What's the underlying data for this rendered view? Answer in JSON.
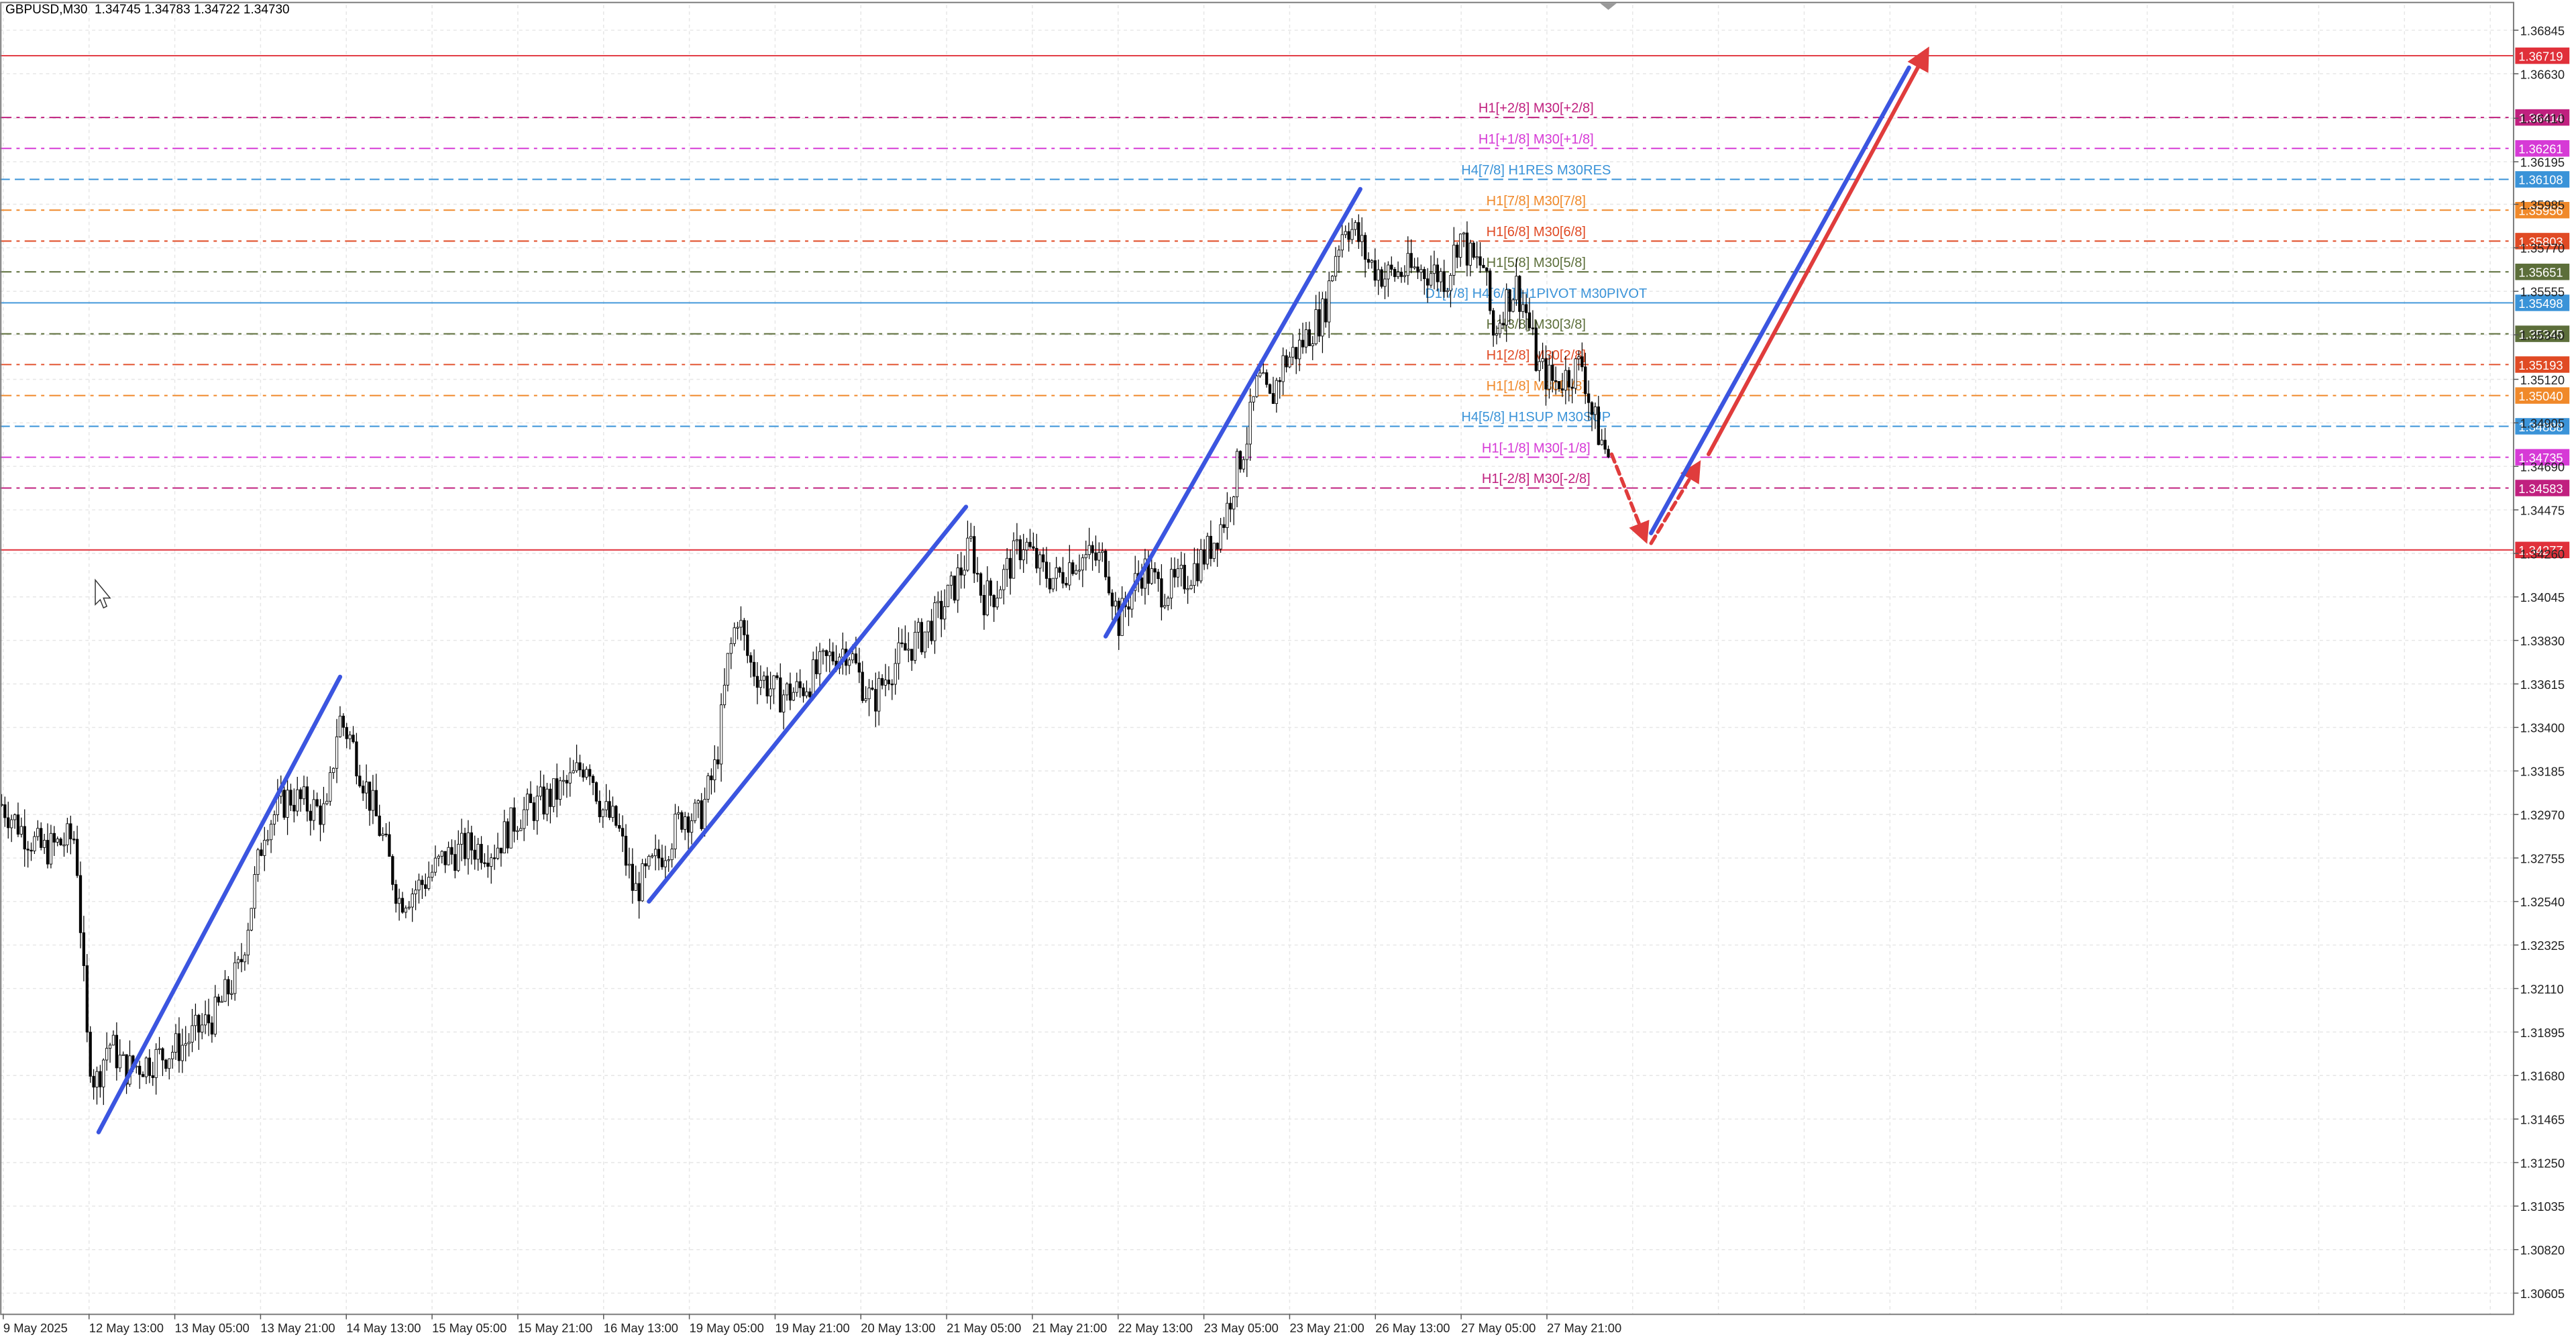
{
  "header": {
    "symbol": "GBPUSD,M30",
    "quote": "1.34745 1.34783 1.34722 1.34730"
  },
  "colors": {
    "candle": "#000000",
    "grid": "#e6e6e6",
    "channel": "#3b55e0",
    "forecast": "#e03c3c"
  },
  "chart_data": {
    "type": "candlestick",
    "y_ticks": [
      1.36845,
      1.3663,
      1.3641,
      1.36195,
      1.35985,
      1.3577,
      1.35555,
      1.3534,
      1.3512,
      1.34905,
      1.3469,
      1.34475,
      1.3426,
      1.34045,
      1.3383,
      1.33615,
      1.334,
      1.33185,
      1.3297,
      1.32755,
      1.3254,
      1.32325,
      1.3211,
      1.31895,
      1.3168,
      1.31465,
      1.3125,
      1.31035,
      1.3082,
      1.30605
    ],
    "x_ticks": [
      "9 May 2025",
      "12 May 13:00",
      "13 May 05:00",
      "13 May 21:00",
      "14 May 13:00",
      "15 May 05:00",
      "15 May 21:00",
      "16 May 13:00",
      "19 May 05:00",
      "19 May 21:00",
      "20 May 13:00",
      "21 May 05:00",
      "21 May 21:00",
      "22 May 13:00",
      "23 May 05:00",
      "23 May 21:00",
      "26 May 13:00",
      "27 May 05:00",
      "27 May 21:00"
    ],
    "levels": [
      {
        "label": "",
        "tag": "1.36719",
        "value": 1.36719,
        "color": "#e0303a",
        "style": "solid"
      },
      {
        "label": "H1[+2/8] M30[+2/8]",
        "tag": "1.36414",
        "value": 1.36414,
        "color": "#c0207f",
        "style": "dashdot"
      },
      {
        "label": "H1[+1/8] M30[+1/8]",
        "tag": "1.36261",
        "value": 1.36261,
        "color": "#d63ad6",
        "style": "dashdot"
      },
      {
        "label": "H4[7/8] H1RES M30RES",
        "tag": "1.36108",
        "value": 1.36108,
        "color": "#3a93d8",
        "style": "dashed"
      },
      {
        "label": "H1[7/8] M30[7/8]",
        "tag": "1.35956",
        "value": 1.35956,
        "color": "#f0892a",
        "style": "dashdot"
      },
      {
        "label": "H1[6/8] M30[6/8]",
        "tag": "1.35803",
        "value": 1.35803,
        "color": "#e04a24",
        "style": "dashdot"
      },
      {
        "label": "H1[5/8] M30[5/8]",
        "tag": "1.35651",
        "value": 1.35651,
        "color": "#5c6e3a",
        "style": "dashdot"
      },
      {
        "label": "D1[7/8] H4[6/8] H1PIVOT M30PIVOT",
        "tag": "1.35498",
        "value": 1.35498,
        "color": "#3a93d8",
        "style": "solid"
      },
      {
        "label": "H1[3/8] M30[3/8]",
        "tag": "1.35345",
        "value": 1.35345,
        "color": "#5c6e3a",
        "style": "dashdot"
      },
      {
        "label": "H1[2/8] M30[2/8]",
        "tag": "1.35193",
        "value": 1.35193,
        "color": "#e04a24",
        "style": "dashdot"
      },
      {
        "label": "H1[1/8] M30[1/8]",
        "tag": "1.35040",
        "value": 1.3504,
        "color": "#f0892a",
        "style": "dashdot"
      },
      {
        "label": "H4[5/8] H1SUP M30SUP",
        "tag": "1.34888",
        "value": 1.34888,
        "color": "#3a93d8",
        "style": "dashed"
      },
      {
        "label": "H1[-1/8] M30[-1/8]",
        "tag": "1.34735",
        "value": 1.34735,
        "color": "#d63ad6",
        "style": "dashdot"
      },
      {
        "label": "H1[-2/8] M30[-2/8]",
        "tag": "1.34583",
        "value": 1.34583,
        "color": "#c0207f",
        "style": "dashdot"
      },
      {
        "label": "",
        "tag": "1.34277",
        "value": 1.34277,
        "color": "#e0303a",
        "style": "solid"
      }
    ],
    "y_range": [
      1.305,
      1.3697
    ],
    "grid": true,
    "series": [
      {
        "points": [
          {
            "x": 0,
            "y": 1.3302
          },
          {
            "x": 15,
            "y": 1.3287
          },
          {
            "x": 25,
            "y": 1.3279
          },
          {
            "x": 45,
            "y": 1.3286
          },
          {
            "x": 52,
            "y": 1.3185
          },
          {
            "x": 57,
            "y": 1.3163
          },
          {
            "x": 65,
            "y": 1.3185
          },
          {
            "x": 75,
            "y": 1.3171
          },
          {
            "x": 90,
            "y": 1.3175
          },
          {
            "x": 110,
            "y": 1.3183
          },
          {
            "x": 130,
            "y": 1.3198
          },
          {
            "x": 145,
            "y": 1.3221
          },
          {
            "x": 160,
            "y": 1.3291
          },
          {
            "x": 175,
            "y": 1.3306
          },
          {
            "x": 190,
            "y": 1.33
          },
          {
            "x": 198,
            "y": 1.3297
          },
          {
            "x": 205,
            "y": 1.3345
          },
          {
            "x": 212,
            "y": 1.3335
          },
          {
            "x": 222,
            "y": 1.331
          },
          {
            "x": 232,
            "y": 1.3285
          },
          {
            "x": 242,
            "y": 1.3255
          },
          {
            "x": 255,
            "y": 1.3262
          },
          {
            "x": 270,
            "y": 1.3276
          },
          {
            "x": 285,
            "y": 1.3281
          },
          {
            "x": 300,
            "y": 1.328
          },
          {
            "x": 315,
            "y": 1.3297
          },
          {
            "x": 330,
            "y": 1.3303
          },
          {
            "x": 345,
            "y": 1.3312
          },
          {
            "x": 357,
            "y": 1.3325
          },
          {
            "x": 365,
            "y": 1.33
          },
          {
            "x": 375,
            "y": 1.3291
          },
          {
            "x": 385,
            "y": 1.3258
          },
          {
            "x": 395,
            "y": 1.327
          },
          {
            "x": 405,
            "y": 1.3282
          },
          {
            "x": 415,
            "y": 1.3298
          },
          {
            "x": 425,
            "y": 1.3295
          },
          {
            "x": 435,
            "y": 1.3322
          },
          {
            "x": 442,
            "y": 1.3372
          },
          {
            "x": 448,
            "y": 1.3396
          },
          {
            "x": 455,
            "y": 1.3372
          },
          {
            "x": 462,
            "y": 1.3365
          },
          {
            "x": 472,
            "y": 1.3356
          },
          {
            "x": 485,
            "y": 1.3358
          },
          {
            "x": 495,
            "y": 1.3366
          },
          {
            "x": 505,
            "y": 1.3375
          },
          {
            "x": 515,
            "y": 1.338
          },
          {
            "x": 522,
            "y": 1.3365
          },
          {
            "x": 530,
            "y": 1.3352
          },
          {
            "x": 540,
            "y": 1.3368
          },
          {
            "x": 550,
            "y": 1.3378
          },
          {
            "x": 560,
            "y": 1.3385
          },
          {
            "x": 570,
            "y": 1.3395
          },
          {
            "x": 580,
            "y": 1.341
          },
          {
            "x": 590,
            "y": 1.343
          },
          {
            "x": 597,
            "y": 1.3404
          },
          {
            "x": 605,
            "y": 1.3407
          },
          {
            "x": 612,
            "y": 1.3418
          },
          {
            "x": 622,
            "y": 1.3432
          },
          {
            "x": 632,
            "y": 1.3418
          },
          {
            "x": 642,
            "y": 1.3413
          },
          {
            "x": 652,
            "y": 1.3423
          },
          {
            "x": 662,
            "y": 1.3424
          },
          {
            "x": 672,
            "y": 1.3422
          },
          {
            "x": 680,
            "y": 1.3392
          },
          {
            "x": 688,
            "y": 1.3408
          },
          {
            "x": 695,
            "y": 1.3419
          },
          {
            "x": 705,
            "y": 1.3408
          },
          {
            "x": 715,
            "y": 1.341
          },
          {
            "x": 725,
            "y": 1.3418
          },
          {
            "x": 735,
            "y": 1.3428
          },
          {
            "x": 745,
            "y": 1.3445
          },
          {
            "x": 752,
            "y": 1.3468
          },
          {
            "x": 758,
            "y": 1.3484
          },
          {
            "x": 765,
            "y": 1.3512
          },
          {
            "x": 772,
            "y": 1.35
          },
          {
            "x": 780,
            "y": 1.352
          },
          {
            "x": 790,
            "y": 1.3528
          },
          {
            "x": 798,
            "y": 1.3538
          },
          {
            "x": 805,
            "y": 1.3545
          },
          {
            "x": 812,
            "y": 1.3575
          },
          {
            "x": 818,
            "y": 1.359
          },
          {
            "x": 825,
            "y": 1.3583
          },
          {
            "x": 832,
            "y": 1.357
          },
          {
            "x": 842,
            "y": 1.3563
          },
          {
            "x": 852,
            "y": 1.3565
          },
          {
            "x": 862,
            "y": 1.3566
          },
          {
            "x": 872,
            "y": 1.3565
          },
          {
            "x": 880,
            "y": 1.3562
          },
          {
            "x": 887,
            "y": 1.3584
          },
          {
            "x": 895,
            "y": 1.357
          },
          {
            "x": 902,
            "y": 1.3568
          },
          {
            "x": 908,
            "y": 1.3534
          },
          {
            "x": 915,
            "y": 1.355
          },
          {
            "x": 922,
            "y": 1.3558
          },
          {
            "x": 928,
            "y": 1.3545
          },
          {
            "x": 935,
            "y": 1.3518
          },
          {
            "x": 945,
            "y": 1.351
          },
          {
            "x": 955,
            "y": 1.3515
          },
          {
            "x": 962,
            "y": 1.352
          },
          {
            "x": 968,
            "y": 1.3495
          },
          {
            "x": 975,
            "y": 1.3479
          },
          {
            "x": 979,
            "y": 1.3473
          }
        ]
      }
    ],
    "channels": [
      {
        "from": {
          "x": 60,
          "y": 1.314
        },
        "to": {
          "x": 207,
          "y": 1.3365
        }
      },
      {
        "from": {
          "x": 395,
          "y": 1.3254
        },
        "to": {
          "x": 588,
          "y": 1.3449
        }
      },
      {
        "from": {
          "x": 673,
          "y": 1.3385
        },
        "to": {
          "x": 828,
          "y": 1.3606
        }
      }
    ],
    "forecast": [
      {
        "kind": "dashed-red",
        "from": {
          "x": 981,
          "y": 1.3475
        },
        "to": {
          "x": 1001,
          "y": 1.3434
        }
      },
      {
        "kind": "dashed-red",
        "from": {
          "x": 1005,
          "y": 1.3431
        },
        "to": {
          "x": 1033,
          "y": 1.3469
        }
      },
      {
        "kind": "solid-blue",
        "from": {
          "x": 1005,
          "y": 1.3436
        },
        "to": {
          "x": 1162,
          "y": 1.3666
        }
      },
      {
        "kind": "solid-red",
        "from": {
          "x": 1040,
          "y": 1.3475
        },
        "to": {
          "x": 1172,
          "y": 1.3673
        }
      }
    ],
    "x_range": [
      0,
      1530
    ]
  }
}
